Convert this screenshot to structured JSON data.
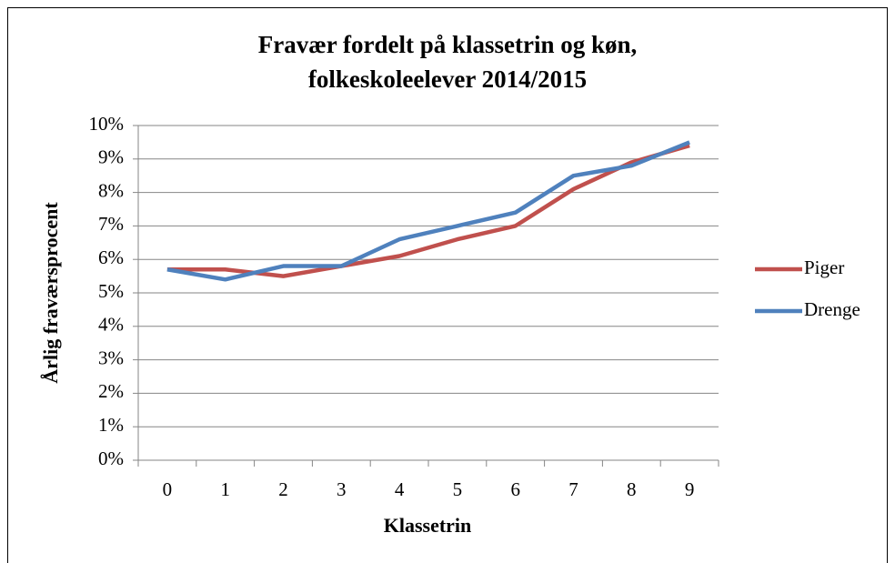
{
  "chart_data": {
    "type": "line",
    "title": [
      "Fravær fordelt på klassetrin og køn,",
      "folkeskoleelever 2014/2015"
    ],
    "x_label": "Klassetrin",
    "y_label": "Årlig fraværsprocent",
    "categories": [
      "0",
      "1",
      "2",
      "3",
      "4",
      "5",
      "6",
      "7",
      "8",
      "9"
    ],
    "series": [
      {
        "name": "Piger",
        "color": "#c0504d",
        "values": [
          5.7,
          5.7,
          5.5,
          5.8,
          6.1,
          6.6,
          7.0,
          8.1,
          8.9,
          9.4
        ]
      },
      {
        "name": "Drenge",
        "color": "#4f81bd",
        "values": [
          5.7,
          5.4,
          5.8,
          5.8,
          6.6,
          7.0,
          7.4,
          8.5,
          8.8,
          9.5
        ]
      }
    ],
    "ylim": [
      0,
      10
    ],
    "yticks": [
      {
        "value": 0,
        "label": "0%"
      },
      {
        "value": 1,
        "label": "1%"
      },
      {
        "value": 2,
        "label": "2%"
      },
      {
        "value": 3,
        "label": "3%"
      },
      {
        "value": 4,
        "label": "4%"
      },
      {
        "value": 5,
        "label": "5%"
      },
      {
        "value": 6,
        "label": "6%"
      },
      {
        "value": 7,
        "label": "7%"
      },
      {
        "value": 8,
        "label": "8%"
      },
      {
        "value": 9,
        "label": "9%"
      },
      {
        "value": 10,
        "label": "10%"
      }
    ],
    "grid": true,
    "legend": "right"
  }
}
